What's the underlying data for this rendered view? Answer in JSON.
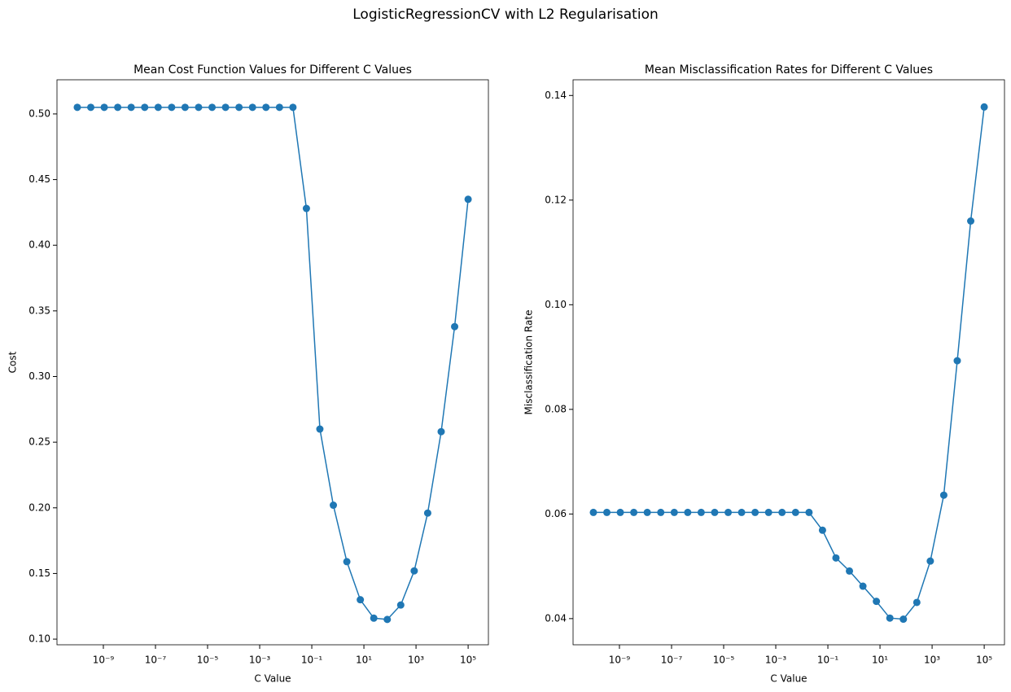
{
  "title": "LogisticRegressionCV with L2 Regularisation",
  "chart_data": [
    {
      "type": "line",
      "title": "Mean Cost Function Values for Different C Values",
      "xlabel": "C Value",
      "ylabel": "Cost",
      "xscale": "log",
      "x": [
        1e-10,
        3.29e-10,
        1.08e-09,
        3.56e-09,
        1.17e-08,
        3.86e-08,
        1.27e-07,
        4.18e-07,
        1.37e-06,
        4.52e-06,
        1.49e-05,
        4.89e-05,
        0.000161,
        0.00053,
        0.00174,
        0.00574,
        0.0189,
        0.0621,
        0.204,
        0.672,
        2.212,
        7.279,
        23.95,
        78.8,
        259.3,
        853.2,
        2807,
        9237,
        30392,
        100000
      ],
      "series": [
        {
          "color": "#1f77b4",
          "values": [
            0.505,
            0.505,
            0.505,
            0.505,
            0.505,
            0.505,
            0.505,
            0.505,
            0.505,
            0.505,
            0.505,
            0.505,
            0.505,
            0.505,
            0.505,
            0.505,
            0.505,
            0.428,
            0.26,
            0.202,
            0.159,
            0.13,
            0.116,
            0.115,
            0.126,
            0.152,
            0.196,
            0.258,
            0.338,
            0.435
          ]
        }
      ],
      "xlim": [
        1.66e-11,
        600000.0
      ],
      "xticks": [
        {
          "value": 1e-09,
          "label": "10⁻⁹"
        },
        {
          "value": 1e-07,
          "label": "10⁻⁷"
        },
        {
          "value": 1e-05,
          "label": "10⁻⁵"
        },
        {
          "value": 0.001,
          "label": "10⁻³"
        },
        {
          "value": 0.1,
          "label": "10⁻¹"
        },
        {
          "value": 10,
          "label": "10¹"
        },
        {
          "value": 1000,
          "label": "10³"
        },
        {
          "value": 100000,
          "label": "10⁵"
        }
      ],
      "ylim": [
        0.0957,
        0.526
      ],
      "yticks": [
        {
          "value": 0.1,
          "label": "0.10"
        },
        0.15,
        {
          "value": 0.2,
          "label": "0.20"
        },
        0.25,
        {
          "value": 0.3,
          "label": "0.30"
        },
        0.35,
        {
          "value": 0.4,
          "label": "0.40"
        },
        0.45,
        {
          "value": 0.5,
          "label": "0.50"
        }
      ]
    },
    {
      "type": "line",
      "title": "Mean Misclassification Rates for Different C Values",
      "xlabel": "C Value",
      "ylabel": "Misclassification Rate",
      "xscale": "log",
      "x": [
        1e-10,
        3.29e-10,
        1.08e-09,
        3.56e-09,
        1.17e-08,
        3.86e-08,
        1.27e-07,
        4.18e-07,
        1.37e-06,
        4.52e-06,
        1.49e-05,
        4.89e-05,
        0.000161,
        0.00053,
        0.00174,
        0.00574,
        0.0189,
        0.0621,
        0.204,
        0.672,
        2.212,
        7.279,
        23.95,
        78.8,
        259.3,
        853.2,
        2807,
        9237,
        30392,
        100000
      ],
      "series": [
        {
          "color": "#1f77b4",
          "values": [
            0.0603,
            0.0603,
            0.0603,
            0.0603,
            0.0603,
            0.0603,
            0.0603,
            0.0603,
            0.0603,
            0.0603,
            0.0603,
            0.0603,
            0.0603,
            0.0603,
            0.0603,
            0.0603,
            0.0603,
            0.0569,
            0.0516,
            0.0491,
            0.0462,
            0.0433,
            0.0401,
            0.0399,
            0.0431,
            0.051,
            0.0636,
            0.0893,
            0.116,
            0.1378
          ]
        }
      ],
      "xlim": [
        1.66e-11,
        600000.0
      ],
      "xticks": [
        {
          "value": 1e-09,
          "label": "10⁻⁹"
        },
        {
          "value": 1e-07,
          "label": "10⁻⁷"
        },
        {
          "value": 1e-05,
          "label": "10⁻⁵"
        },
        {
          "value": 0.001,
          "label": "10⁻³"
        },
        {
          "value": 0.1,
          "label": "10⁻¹"
        },
        {
          "value": 10,
          "label": "10¹"
        },
        {
          "value": 1000,
          "label": "10³"
        },
        {
          "value": 100000,
          "label": "10⁵"
        }
      ],
      "ylim": [
        0.035,
        0.143
      ],
      "yticks": [
        {
          "value": 0.04,
          "label": "0.04"
        },
        {
          "value": 0.06,
          "label": "0.06"
        },
        {
          "value": 0.08,
          "label": "0.08"
        },
        {
          "value": 0.1,
          "label": "0.10"
        },
        {
          "value": 0.12,
          "label": "0.12"
        },
        {
          "value": 0.14,
          "label": "0.14"
        }
      ]
    }
  ]
}
